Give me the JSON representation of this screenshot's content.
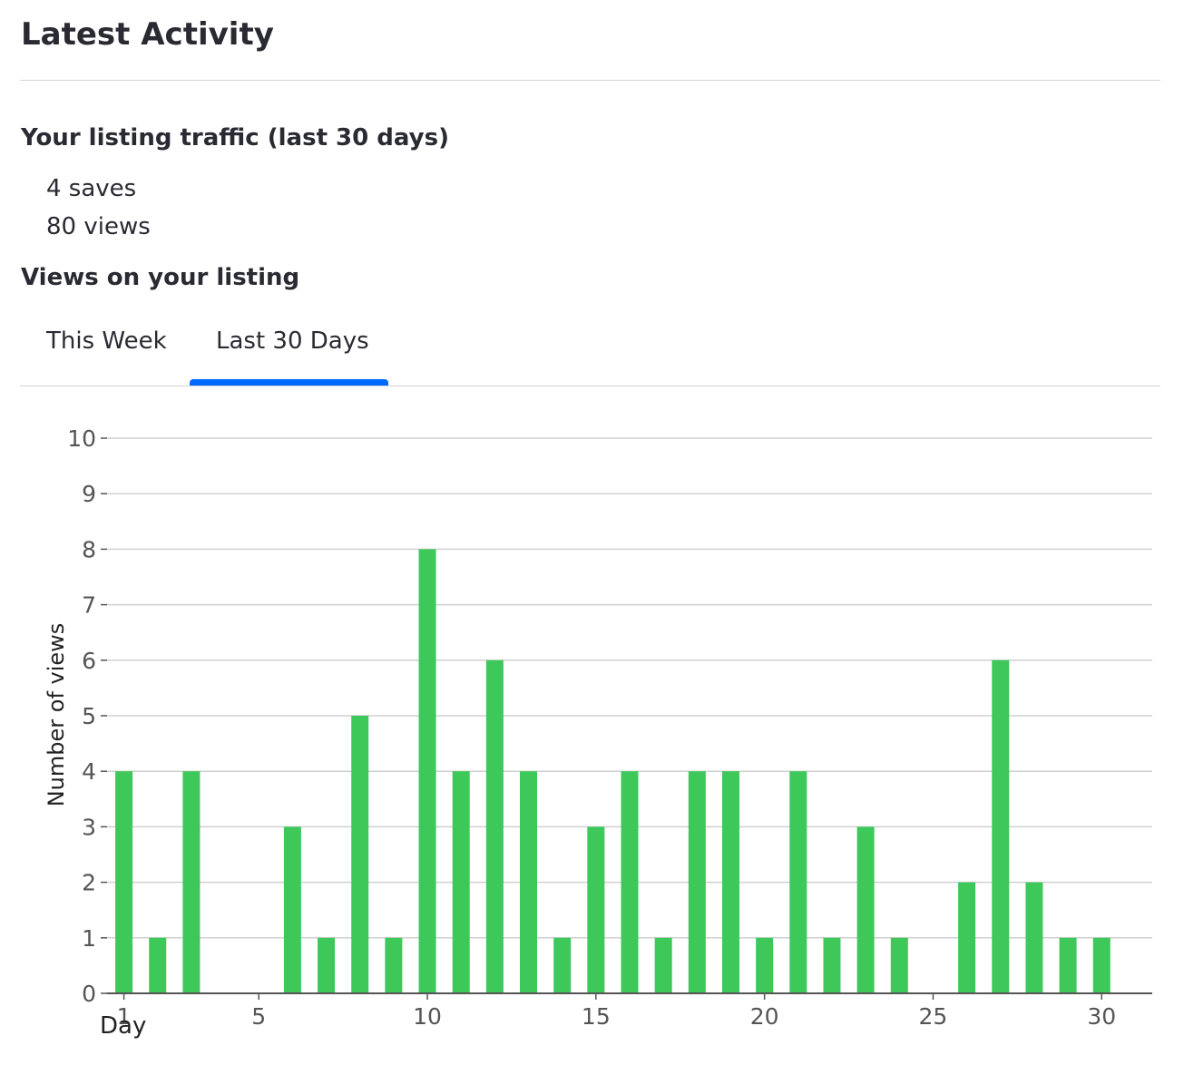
{
  "header": {
    "title": "Latest Activity"
  },
  "traffic": {
    "heading": "Your listing traffic (last 30 days)",
    "saves": "4 saves",
    "views": "80 views"
  },
  "views_section": {
    "heading": "Views on your listing",
    "tabs": [
      {
        "label": "This Week",
        "selected": false
      },
      {
        "label": "Last 30 Days",
        "selected": true
      }
    ]
  },
  "colors": {
    "bar": "#3ec85a",
    "accent": "#006aff",
    "grid": "#d0d0d0",
    "axis": "#555555"
  },
  "chart_data": {
    "type": "bar",
    "xlabel": "Day",
    "ylabel": "Number of views",
    "x": [
      1,
      2,
      3,
      4,
      5,
      6,
      7,
      8,
      9,
      10,
      11,
      12,
      13,
      14,
      15,
      16,
      17,
      18,
      19,
      20,
      21,
      22,
      23,
      24,
      25,
      26,
      27,
      28,
      29,
      30
    ],
    "values": [
      4,
      1,
      4,
      0,
      0,
      3,
      1,
      5,
      1,
      8,
      4,
      6,
      4,
      1,
      3,
      4,
      1,
      4,
      4,
      1,
      4,
      1,
      3,
      1,
      0,
      2,
      6,
      2,
      1,
      1
    ],
    "xticks": [
      1,
      5,
      10,
      15,
      20,
      25,
      30
    ],
    "yticks": [
      0,
      1,
      2,
      3,
      4,
      5,
      6,
      7,
      8,
      9,
      10
    ],
    "ylim": [
      0,
      10
    ],
    "xlim": [
      0.5,
      31.5
    ],
    "grid": true
  }
}
